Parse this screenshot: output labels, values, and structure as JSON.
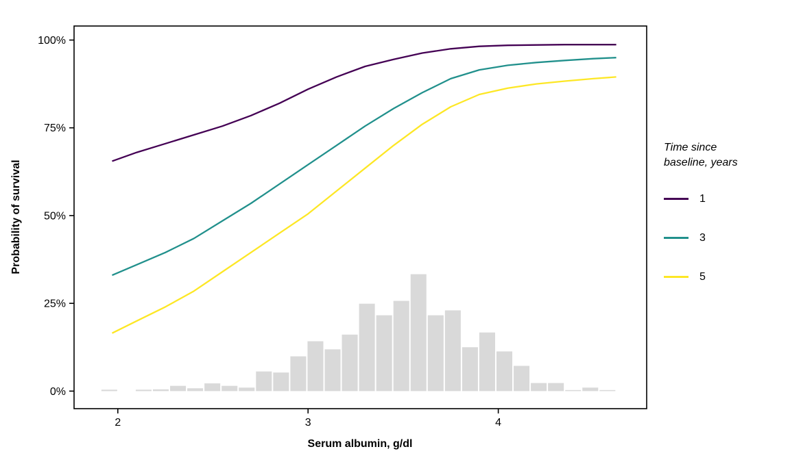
{
  "figure": {
    "background": "#FFFFFF",
    "text_color": "#000000"
  },
  "chart_data": {
    "type": "line",
    "title": "",
    "xlabel": "Serum albumin, g/dl",
    "ylabel": "Probability of survival",
    "x_ticks": [
      2,
      3,
      4
    ],
    "y_ticks": [
      0,
      25,
      50,
      75,
      100
    ],
    "y_tick_suffix": "%",
    "xlim": [
      1.77,
      4.78
    ],
    "ylim": [
      -5,
      104
    ],
    "grid": "off",
    "panel_border_color": "#000000",
    "legend": {
      "title": "Time since baseline, years",
      "position": "right",
      "entries": [
        {
          "label": "1",
          "color": "#440154"
        },
        {
          "label": "3",
          "color": "#21908C"
        },
        {
          "label": "5",
          "color": "#FDE725"
        }
      ]
    },
    "series": [
      {
        "name": "1",
        "color": "#440154",
        "points": [
          [
            1.97,
            65.5
          ],
          [
            2.1,
            68
          ],
          [
            2.25,
            70.5
          ],
          [
            2.4,
            73
          ],
          [
            2.55,
            75.5
          ],
          [
            2.7,
            78.5
          ],
          [
            2.85,
            82
          ],
          [
            3.0,
            86
          ],
          [
            3.15,
            89.5
          ],
          [
            3.3,
            92.5
          ],
          [
            3.45,
            94.5
          ],
          [
            3.6,
            96.3
          ],
          [
            3.75,
            97.5
          ],
          [
            3.9,
            98.2
          ],
          [
            4.05,
            98.5
          ],
          [
            4.2,
            98.6
          ],
          [
            4.35,
            98.7
          ],
          [
            4.5,
            98.7
          ],
          [
            4.62,
            98.7
          ]
        ]
      },
      {
        "name": "3",
        "color": "#21908C",
        "points": [
          [
            1.97,
            33
          ],
          [
            2.1,
            36
          ],
          [
            2.25,
            39.5
          ],
          [
            2.4,
            43.5
          ],
          [
            2.55,
            48.5
          ],
          [
            2.7,
            53.5
          ],
          [
            2.85,
            59
          ],
          [
            3.0,
            64.5
          ],
          [
            3.15,
            70
          ],
          [
            3.3,
            75.5
          ],
          [
            3.45,
            80.5
          ],
          [
            3.6,
            85
          ],
          [
            3.75,
            89
          ],
          [
            3.9,
            91.5
          ],
          [
            4.05,
            92.8
          ],
          [
            4.2,
            93.6
          ],
          [
            4.35,
            94.2
          ],
          [
            4.5,
            94.7
          ],
          [
            4.62,
            95
          ]
        ]
      },
      {
        "name": "5",
        "color": "#FDE725",
        "points": [
          [
            1.97,
            16.5
          ],
          [
            2.1,
            20
          ],
          [
            2.25,
            24
          ],
          [
            2.4,
            28.5
          ],
          [
            2.55,
            34
          ],
          [
            2.7,
            39.5
          ],
          [
            2.85,
            45
          ],
          [
            3.0,
            50.5
          ],
          [
            3.15,
            57
          ],
          [
            3.3,
            63.5
          ],
          [
            3.45,
            70
          ],
          [
            3.6,
            76
          ],
          [
            3.75,
            81
          ],
          [
            3.9,
            84.5
          ],
          [
            4.05,
            86.3
          ],
          [
            4.2,
            87.5
          ],
          [
            4.35,
            88.3
          ],
          [
            4.5,
            89
          ],
          [
            4.62,
            89.5
          ]
        ]
      }
    ],
    "histogram": {
      "fill": "#D9D9D9",
      "bin_start": 1.91,
      "bin_width": 0.0903,
      "heights_percent": [
        0.4,
        0,
        0.4,
        0.5,
        1.5,
        0.8,
        2.2,
        1.5,
        1.0,
        5.6,
        5.3,
        9.9,
        14.2,
        11.9,
        16.1,
        24.9,
        21.6,
        25.7,
        33.3,
        21.6,
        23.0,
        12.5,
        16.7,
        11.3,
        7.2,
        2.3,
        2.3,
        0.3,
        1.0,
        0.3
      ]
    }
  }
}
